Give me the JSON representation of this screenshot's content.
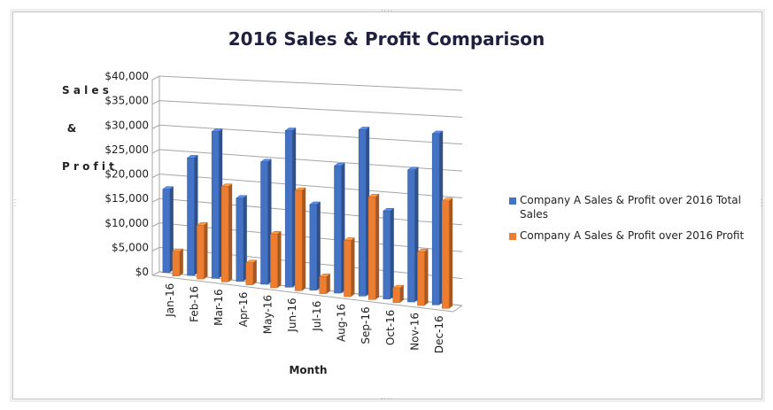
{
  "chart_data": {
    "type": "bar",
    "title": "2016 Sales & Profit Comparison",
    "ylabel": "S a l e s\n\n&\n\nP r o f i t",
    "xlabel": "Month",
    "categories": [
      "Jan-16",
      "Feb-16",
      "Mar-16",
      "Apr-16",
      "May-16",
      "Jun-16",
      "Jul-16",
      "Aug-16",
      "Sep-16",
      "Oct-16",
      "Nov-16",
      "Dec-16"
    ],
    "ylim": [
      0,
      40000
    ],
    "yticks": [
      "$0",
      "$5,000",
      "$10,000",
      "$15,000",
      "$20,000",
      "$25,000",
      "$30,000",
      "$35,000",
      "$40,000"
    ],
    "grid": true,
    "legend_position": "right",
    "series": [
      {
        "name": "Company A Sales & Profit over 2016 Total Sales",
        "color": "#4472c4",
        "values": [
          17000,
          24000,
          30000,
          17000,
          25000,
          32000,
          17500,
          26000,
          34000,
          18000,
          27000,
          35000
        ]
      },
      {
        "name": "Company A Sales & Profit over 2016 Profit",
        "color": "#ed7d31",
        "values": [
          5000,
          11000,
          19500,
          4500,
          11000,
          20500,
          3500,
          11500,
          21000,
          3000,
          11000,
          22000
        ]
      }
    ]
  }
}
